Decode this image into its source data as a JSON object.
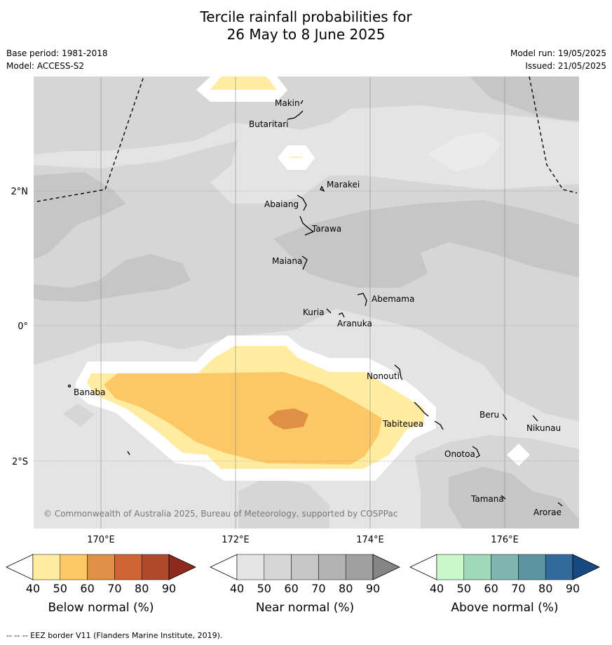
{
  "header": {
    "title_line1": "Tercile rainfall probabilities for",
    "title_line2": "26 May to 8 June 2025",
    "base_period": "Base period: 1981-2018",
    "model": "Model: ACCESS-S2",
    "model_run": "Model run: 19/05/2025",
    "issued": "Issued: 21/05/2025"
  },
  "map": {
    "longitude_ticks": [
      "170°E",
      "172°E",
      "174°E",
      "176°E"
    ],
    "latitude_ticks": [
      "2°N",
      "0°",
      "2°S"
    ],
    "islands": [
      {
        "name": "Makin"
      },
      {
        "name": "Butaritari"
      },
      {
        "name": "Marakei"
      },
      {
        "name": "Abaiang"
      },
      {
        "name": "Tarawa"
      },
      {
        "name": "Maiana"
      },
      {
        "name": "Abemama"
      },
      {
        "name": "Kuria"
      },
      {
        "name": "Aranuka"
      },
      {
        "name": "Nonouti"
      },
      {
        "name": "Banaba"
      },
      {
        "name": "Beru"
      },
      {
        "name": "Tabiteuea"
      },
      {
        "name": "Nikunau"
      },
      {
        "name": "Onotoa"
      },
      {
        "name": "Tamana"
      },
      {
        "name": "Arorae"
      }
    ],
    "copyright": "© Commonwealth of Australia 2025, Bureau of Meteorology, supported by COSPPac"
  },
  "colorbars": [
    {
      "label": "Below normal (%)",
      "ticks": [
        "40",
        "50",
        "60",
        "70",
        "80",
        "90"
      ],
      "colors": [
        "#ffeca0",
        "#fcc865",
        "#e09045",
        "#cf6532",
        "#b0482a",
        "#8c2a1d"
      ]
    },
    {
      "label": "Near normal (%)",
      "ticks": [
        "40",
        "50",
        "60",
        "70",
        "80",
        "90"
      ],
      "colors": [
        "#e4e4e4",
        "#d6d6d6",
        "#c6c6c6",
        "#b3b3b3",
        "#a0a0a0",
        "#858585"
      ]
    },
    {
      "label": "Above normal (%)",
      "ticks": [
        "40",
        "50",
        "60",
        "70",
        "80",
        "90"
      ],
      "colors": [
        "#c8f8cc",
        "#a0d8bc",
        "#7fb4b0",
        "#5b93a1",
        "#336a9c",
        "#164882"
      ]
    }
  ],
  "footnote": "--  --  -- EEZ border V11 (Flanders Marine Institute, 2019)."
}
